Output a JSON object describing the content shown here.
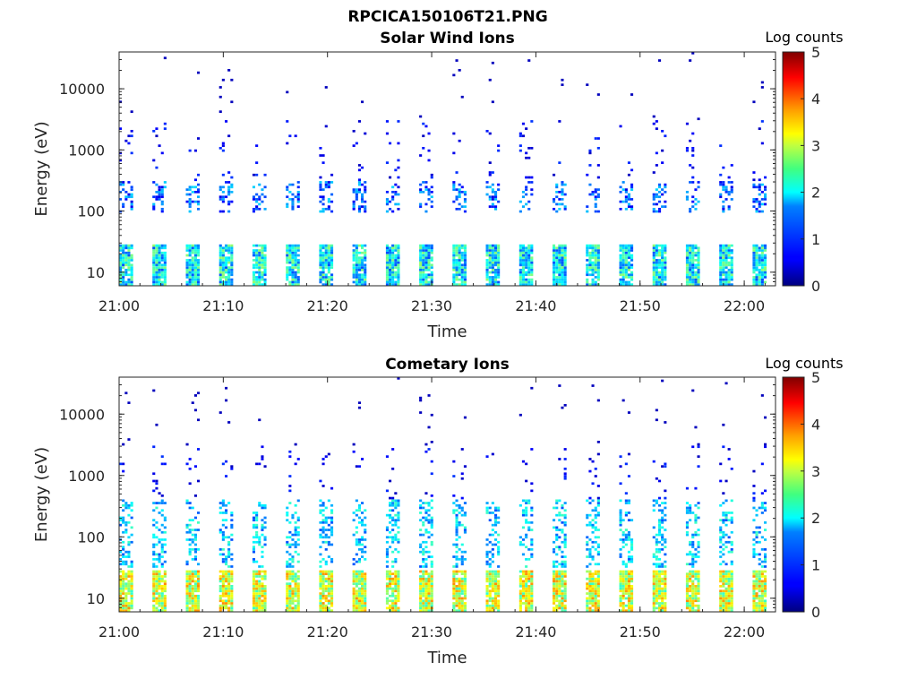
{
  "figure": {
    "title": "RPCICA150106T21.PNG"
  },
  "chart_data": [
    {
      "type": "heatmap",
      "title": "Solar Wind Ions",
      "xlabel": "Time",
      "ylabel": "Energy (eV)",
      "x_scale": "time",
      "y_scale": "log",
      "xlim": [
        "21:00",
        "22:03"
      ],
      "ylim": [
        6,
        40000
      ],
      "x_ticks": [
        "21:00",
        "21:10",
        "21:20",
        "21:30",
        "21:40",
        "21:50",
        "22:00"
      ],
      "y_ticks": [
        "10",
        "100",
        "1000",
        "10000"
      ],
      "color_scale": {
        "label": "Log counts",
        "min": 0,
        "max": 5,
        "ticks": [
          "0",
          "1",
          "2",
          "3",
          "4",
          "5"
        ],
        "colormap": "jet"
      },
      "sweep_start_minutes_past_2100": [
        0.0,
        3.2,
        6.4,
        9.6,
        12.8,
        16.0,
        19.2,
        22.4,
        25.6,
        28.8,
        32.0,
        35.2,
        38.4,
        41.6,
        44.8,
        48.0,
        51.2,
        54.4,
        57.6,
        60.8
      ],
      "features": {
        "low_energy_band_eV": [
          6,
          28
        ],
        "low_energy_band_log_counts": 1.8,
        "mid_energy_band_eV": [
          90,
          300
        ],
        "mid_energy_band_log_counts": 0.5,
        "background_log_counts": 0.3
      }
    },
    {
      "type": "heatmap",
      "title": "Cometary Ions",
      "xlabel": "Time",
      "ylabel": "Energy (eV)",
      "x_scale": "time",
      "y_scale": "log",
      "xlim": [
        "21:00",
        "22:03"
      ],
      "ylim": [
        6,
        40000
      ],
      "x_ticks": [
        "21:00",
        "21:10",
        "21:20",
        "21:30",
        "21:40",
        "21:50",
        "22:00"
      ],
      "y_ticks": [
        "10",
        "100",
        "1000",
        "10000"
      ],
      "color_scale": {
        "label": "Log counts",
        "min": 0,
        "max": 5,
        "ticks": [
          "0",
          "1",
          "2",
          "3",
          "4",
          "5"
        ],
        "colormap": "jet"
      },
      "sweep_start_minutes_past_2100": [
        0.0,
        3.2,
        6.4,
        9.6,
        12.8,
        16.0,
        19.2,
        22.4,
        25.6,
        28.8,
        32.0,
        35.2,
        38.4,
        41.6,
        44.8,
        48.0,
        51.2,
        54.4,
        57.6,
        60.8
      ],
      "features": {
        "low_energy_band_eV": [
          6,
          28
        ],
        "low_energy_band_log_counts": 2.9,
        "mid_energy_band_eV": [
          30,
          400
        ],
        "mid_energy_band_log_counts": 1.0,
        "background_log_counts": 0.3
      }
    }
  ]
}
